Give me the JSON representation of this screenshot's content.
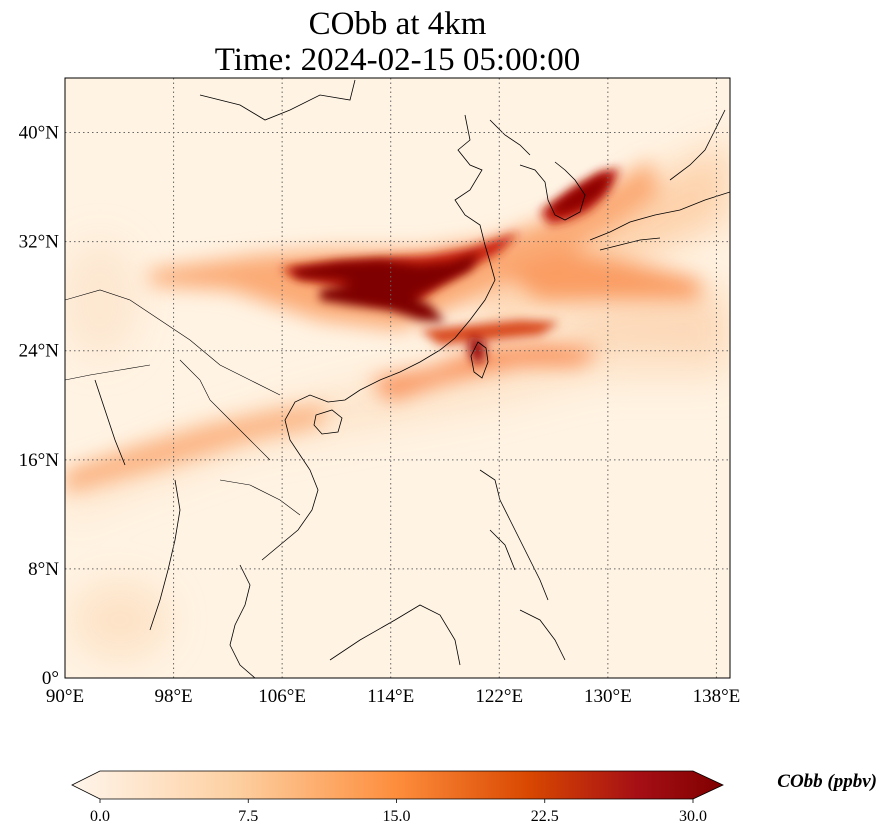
{
  "title": {
    "line1": "CObb at 4km",
    "line2": "Time: 2024-02-15 05:00:00"
  },
  "map": {
    "lon_range": [
      90,
      139
    ],
    "lat_range": [
      0,
      44
    ],
    "x_ticks": [
      {
        "lon": 90,
        "label": "90°E"
      },
      {
        "lon": 98,
        "label": "98°E"
      },
      {
        "lon": 106,
        "label": "106°E"
      },
      {
        "lon": 114,
        "label": "114°E"
      },
      {
        "lon": 122,
        "label": "122°E"
      },
      {
        "lon": 130,
        "label": "130°E"
      },
      {
        "lon": 138,
        "label": "138°E"
      }
    ],
    "y_ticks": [
      {
        "lat": 0,
        "label": "0°"
      },
      {
        "lat": 8,
        "label": "8°N"
      },
      {
        "lat": 16,
        "label": "16°N"
      },
      {
        "lat": 24,
        "label": "24°N"
      },
      {
        "lat": 32,
        "label": "32°N"
      },
      {
        "lat": 40,
        "label": "40°N"
      }
    ],
    "gridlines": true
  },
  "colorbar": {
    "label": "CObb (ppbv)",
    "min": 0,
    "max": 30,
    "extend": "both",
    "colormap": [
      "#fff5eb",
      "#fdd0a2",
      "#fd8d3c",
      "#d94801",
      "#a50f15",
      "#7f0000"
    ],
    "ticks": [
      {
        "value": 0,
        "label": "0.0"
      },
      {
        "value": 7.5,
        "label": "7.5"
      },
      {
        "value": 15,
        "label": "15.0"
      },
      {
        "value": 22.5,
        "label": "22.5"
      },
      {
        "value": 30,
        "label": "30.0"
      }
    ]
  }
}
